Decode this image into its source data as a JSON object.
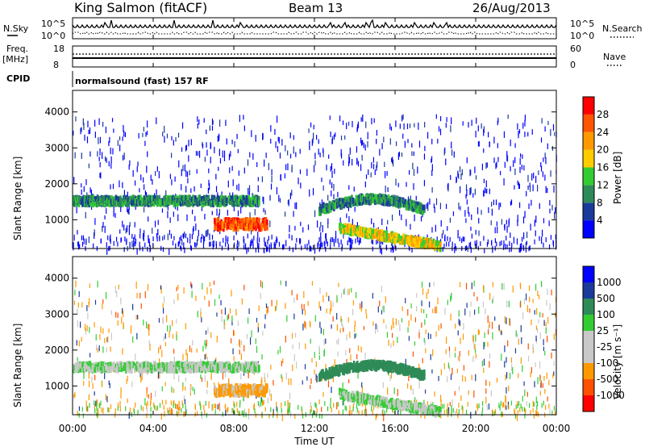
{
  "header": {
    "station": "King Salmon (fitACF)",
    "beam": "Beam 13",
    "date": "26/Aug/2013"
  },
  "noise_panel": {
    "left_label": "N.Sky",
    "right_label": "N.Search",
    "left_ticks": [
      "10^5",
      "10^0"
    ],
    "right_ticks": [
      "10^5",
      "10^0"
    ]
  },
  "freq_panel": {
    "left_label_1": "Freq.",
    "left_label_2": "[MHz]",
    "right_label": "Nave",
    "left_ticks": [
      "18",
      "8"
    ],
    "right_ticks": [
      "60",
      "0"
    ]
  },
  "cpid": {
    "label": "CPID",
    "value": "normalsound (fast) 157 RF"
  },
  "x_axis": {
    "label": "Time UT",
    "ticks": [
      "00:00",
      "04:00",
      "08:00",
      "12:00",
      "16:00",
      "20:00",
      "00:00"
    ]
  },
  "colors": {
    "power": [
      "#0000ff",
      "#1a3a9c",
      "#2e8b57",
      "#33cc33",
      "#ffcc00",
      "#ff9900",
      "#ff5500",
      "#ff0000"
    ],
    "velocity": [
      "#ff0000",
      "#ff5000",
      "#ff9900",
      "#c8c8c8",
      "#c8c8c8",
      "#33cc33",
      "#2e8b57",
      "#1a3a9c",
      "#0000ff"
    ]
  },
  "chart_data": [
    {
      "type": "heatmap",
      "title": "",
      "xlabel": "Time UT",
      "ylabel": "Slant Range [km]",
      "xlim": [
        "00:00",
        "24:00"
      ],
      "ylim": [
        200,
        4600
      ],
      "y_ticks": [
        1000,
        2000,
        3000,
        4000
      ],
      "colorbar": {
        "label": "Power [dB]",
        "range": [
          0,
          32
        ],
        "ticks": [
          4,
          8,
          12,
          16,
          20,
          24,
          28
        ]
      },
      "features": [
        {
          "t_start": 0.0,
          "t_end": 9.2,
          "range_km": 1600,
          "value_db": 10
        },
        {
          "t_start": 7.0,
          "t_end": 9.6,
          "range_km": 950,
          "value_db": 27
        },
        {
          "t_start": 12.2,
          "t_end": 17.4,
          "range_km": 1500,
          "value_db": 10
        },
        {
          "t_start": 13.2,
          "t_end": 18.2,
          "range_km": 600,
          "value_db": 18
        }
      ]
    },
    {
      "type": "heatmap",
      "title": "",
      "xlabel": "Time UT",
      "ylabel": "Slant Range [km]",
      "xlim": [
        "00:00",
        "24:00"
      ],
      "ylim": [
        200,
        4600
      ],
      "y_ticks": [
        1000,
        2000,
        3000,
        4000
      ],
      "colorbar": {
        "label": "Velocity [m s⁻¹]",
        "ticks": [
          "1000",
          "500",
          "100",
          "25",
          "-25",
          "-100",
          "-500",
          "-1000"
        ]
      },
      "features": [
        {
          "t_start": 0.0,
          "t_end": 9.2,
          "range_km": 1600,
          "velocity_ms": 0
        },
        {
          "t_start": 7.0,
          "t_end": 9.6,
          "range_km": 950,
          "velocity_ms": -150
        },
        {
          "t_start": 12.2,
          "t_end": 17.4,
          "range_km": 1500,
          "velocity_ms": 250
        },
        {
          "t_start": 13.2,
          "t_end": 18.2,
          "range_km": 600,
          "velocity_ms": 0
        }
      ]
    }
  ]
}
